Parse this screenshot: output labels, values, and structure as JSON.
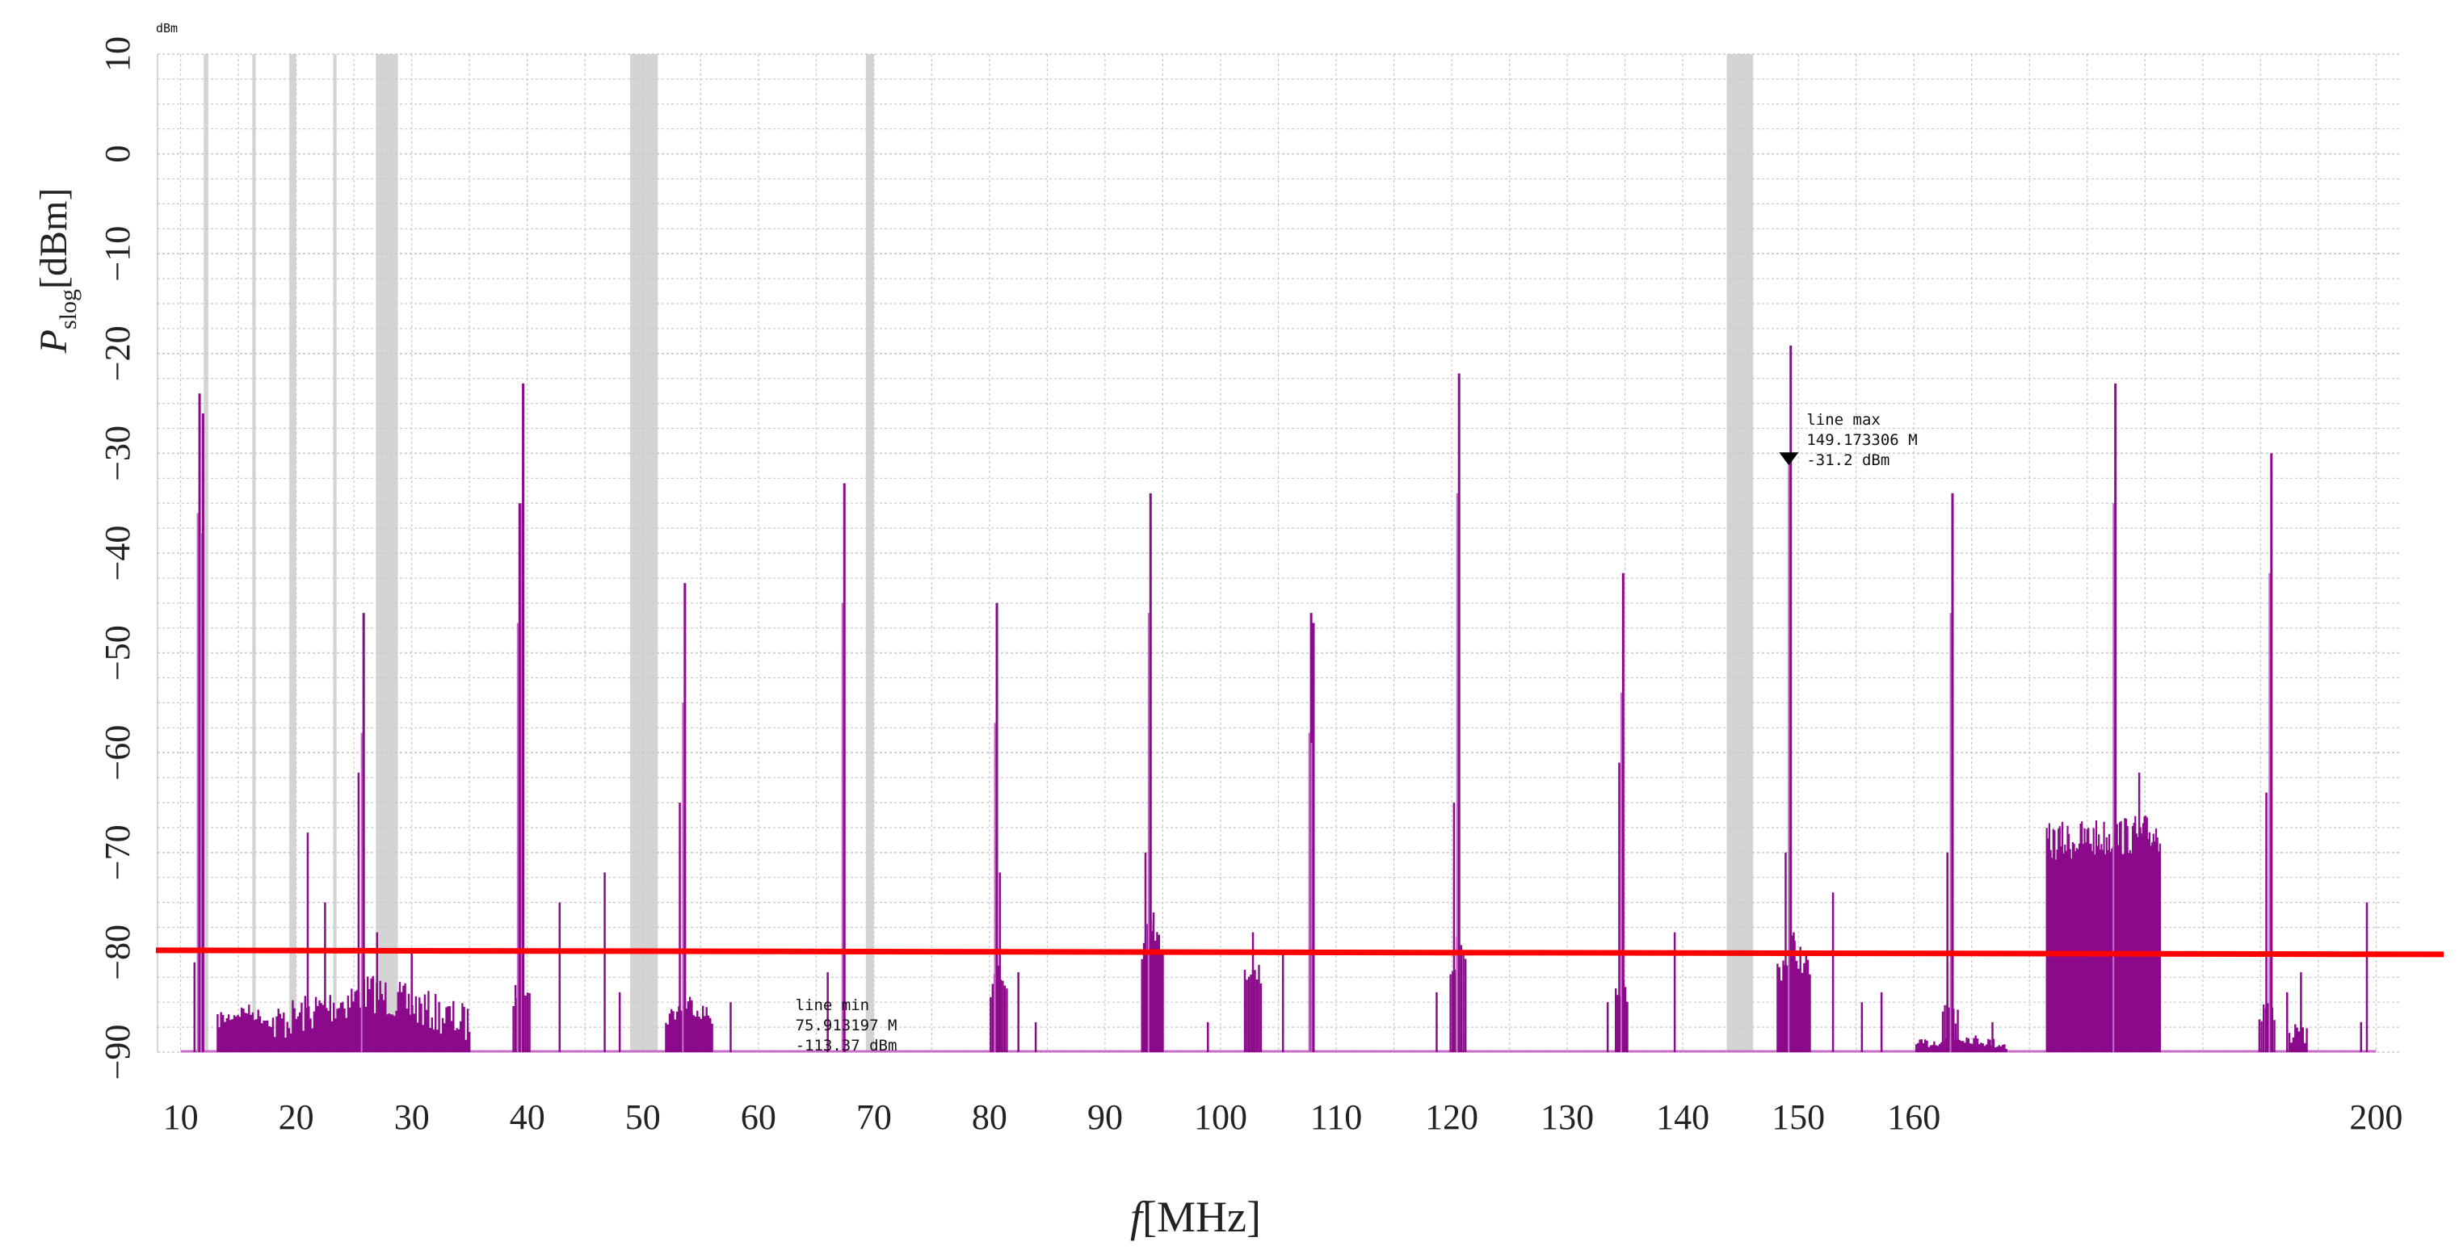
{
  "chart_data": {
    "type": "line",
    "title": "",
    "unit_label": "dBm",
    "xlabel_var": "f",
    "xlabel_unit": "[MHz]",
    "ylabel_var": "P",
    "ylabel_sub": "slog",
    "ylabel_unit": "[dBm]",
    "xlim": [
      8,
      202
    ],
    "ylim": [
      -90,
      10
    ],
    "x_ticks": [
      10,
      20,
      30,
      40,
      50,
      60,
      70,
      80,
      90,
      100,
      110,
      120,
      130,
      140,
      150,
      160,
      200
    ],
    "y_ticks": [
      10,
      0,
      -10,
      -20,
      -30,
      -40,
      -50,
      -60,
      -70,
      -80,
      -90
    ],
    "grid": true,
    "colors": {
      "spectrum": "#8b0a8b",
      "spectrum_light": "#c86ec8",
      "threshold": "#ff0000",
      "band": "#d4d4d4",
      "grid": "#c8c8c8"
    },
    "excluded_bands": [
      {
        "x0": 12.0,
        "x1": 12.4
      },
      {
        "x0": 16.2,
        "x1": 16.5
      },
      {
        "x0": 19.4,
        "x1": 20.0
      },
      {
        "x0": 23.2,
        "x1": 23.5
      },
      {
        "x0": 26.9,
        "x1": 28.8
      },
      {
        "x0": 48.9,
        "x1": 51.3
      },
      {
        "x0": 69.3,
        "x1": 70.0
      },
      {
        "x0": 143.8,
        "x1": 146.1
      }
    ],
    "series": [
      {
        "name": "threshold",
        "x": [
          8,
          202
        ],
        "y": [
          -79.8,
          -80.2
        ]
      }
    ],
    "peaks": [
      {
        "x": 11.5,
        "y": -36
      },
      {
        "x": 11.8,
        "y": -38
      },
      {
        "x": 11.2,
        "y": -81
      },
      {
        "x": 13.5,
        "y": -86
      },
      {
        "x": 21.0,
        "y": -68
      },
      {
        "x": 22.5,
        "y": -75
      },
      {
        "x": 25.7,
        "y": -58
      },
      {
        "x": 25.4,
        "y": -62
      },
      {
        "x": 27.0,
        "y": -78
      },
      {
        "x": 30.0,
        "y": -80
      },
      {
        "x": 39.5,
        "y": -35
      },
      {
        "x": 39.2,
        "y": -47
      },
      {
        "x": 42.8,
        "y": -75
      },
      {
        "x": 46.7,
        "y": -72
      },
      {
        "x": 48.0,
        "y": -84
      },
      {
        "x": 53.5,
        "y": -55
      },
      {
        "x": 53.2,
        "y": -65
      },
      {
        "x": 57.6,
        "y": -85
      },
      {
        "x": 66.0,
        "y": -82
      },
      {
        "x": 67.3,
        "y": -45
      },
      {
        "x": 80.5,
        "y": -57
      },
      {
        "x": 80.9,
        "y": -72
      },
      {
        "x": 82.5,
        "y": -82
      },
      {
        "x": 84.0,
        "y": -87
      },
      {
        "x": 93.8,
        "y": -46
      },
      {
        "x": 93.5,
        "y": -70
      },
      {
        "x": 94.2,
        "y": -76
      },
      {
        "x": 98.9,
        "y": -87
      },
      {
        "x": 102.8,
        "y": -78
      },
      {
        "x": 105.4,
        "y": -80
      },
      {
        "x": 107.7,
        "y": -58
      },
      {
        "x": 107.9,
        "y": -59
      },
      {
        "x": 120.5,
        "y": -34
      },
      {
        "x": 120.2,
        "y": -65
      },
      {
        "x": 118.7,
        "y": -84
      },
      {
        "x": 134.7,
        "y": -54
      },
      {
        "x": 134.5,
        "y": -61
      },
      {
        "x": 139.3,
        "y": -78
      },
      {
        "x": 133.5,
        "y": -85
      },
      {
        "x": 149.2,
        "y": -31.2
      },
      {
        "x": 148.9,
        "y": -70
      },
      {
        "x": 149.6,
        "y": -78
      },
      {
        "x": 153.0,
        "y": -74
      },
      {
        "x": 155.5,
        "y": -85
      },
      {
        "x": 157.2,
        "y": -84
      },
      {
        "x": 163.2,
        "y": -46
      },
      {
        "x": 162.9,
        "y": -70
      },
      {
        "x": 166.8,
        "y": -87
      },
      {
        "x": 177.3,
        "y": -35
      },
      {
        "x": 179.5,
        "y": -62
      },
      {
        "x": 190.8,
        "y": -42
      },
      {
        "x": 190.5,
        "y": -64
      },
      {
        "x": 192.3,
        "y": -84
      },
      {
        "x": 193.5,
        "y": -82
      },
      {
        "x": 198.7,
        "y": -87
      },
      {
        "x": 199.2,
        "y": -75
      }
    ],
    "clusters": [
      {
        "x0": 13.2,
        "x1": 18.0,
        "top": -85,
        "spread": 1.5
      },
      {
        "x0": 18.0,
        "x1": 35.0,
        "top": -82,
        "spread": 4
      },
      {
        "x0": 38.8,
        "x1": 40.2,
        "top": -82,
        "spread": 2
      },
      {
        "x0": 52.0,
        "x1": 56.0,
        "top": -84,
        "spread": 2
      },
      {
        "x0": 80.1,
        "x1": 81.5,
        "top": -81,
        "spread": 2
      },
      {
        "x0": 93.2,
        "x1": 95.0,
        "top": -76,
        "spread": 3
      },
      {
        "x0": 102.1,
        "x1": 103.5,
        "top": -80,
        "spread": 2
      },
      {
        "x0": 119.9,
        "x1": 121.2,
        "top": -78,
        "spread": 3
      },
      {
        "x0": 134.2,
        "x1": 135.2,
        "top": -82,
        "spread": 2
      },
      {
        "x0": 148.2,
        "x1": 151.0,
        "top": -78,
        "spread": 3
      },
      {
        "x0": 162.5,
        "x1": 163.8,
        "top": -84,
        "spread": 2
      },
      {
        "x0": 160.2,
        "x1": 168.0,
        "top": -88,
        "spread": 1
      },
      {
        "x0": 189.9,
        "x1": 191.2,
        "top": -84,
        "spread": 2
      },
      {
        "x0": 192.5,
        "x1": 194.0,
        "top": -86,
        "spread": 2
      }
    ],
    "dense_block": {
      "x0": 171.5,
      "x1": 181.3,
      "top": -67,
      "bottom": -90
    },
    "annotations": {
      "max": {
        "title": "line max",
        "freq": "149.173306 M",
        "level": "-31.2 dBm",
        "x": 149.173306,
        "y": -31.2
      },
      "min": {
        "title": "line min",
        "freq": "75.913197 M",
        "level": "-113.37 dBm",
        "x": 75.913197,
        "y": -113.37
      }
    }
  }
}
